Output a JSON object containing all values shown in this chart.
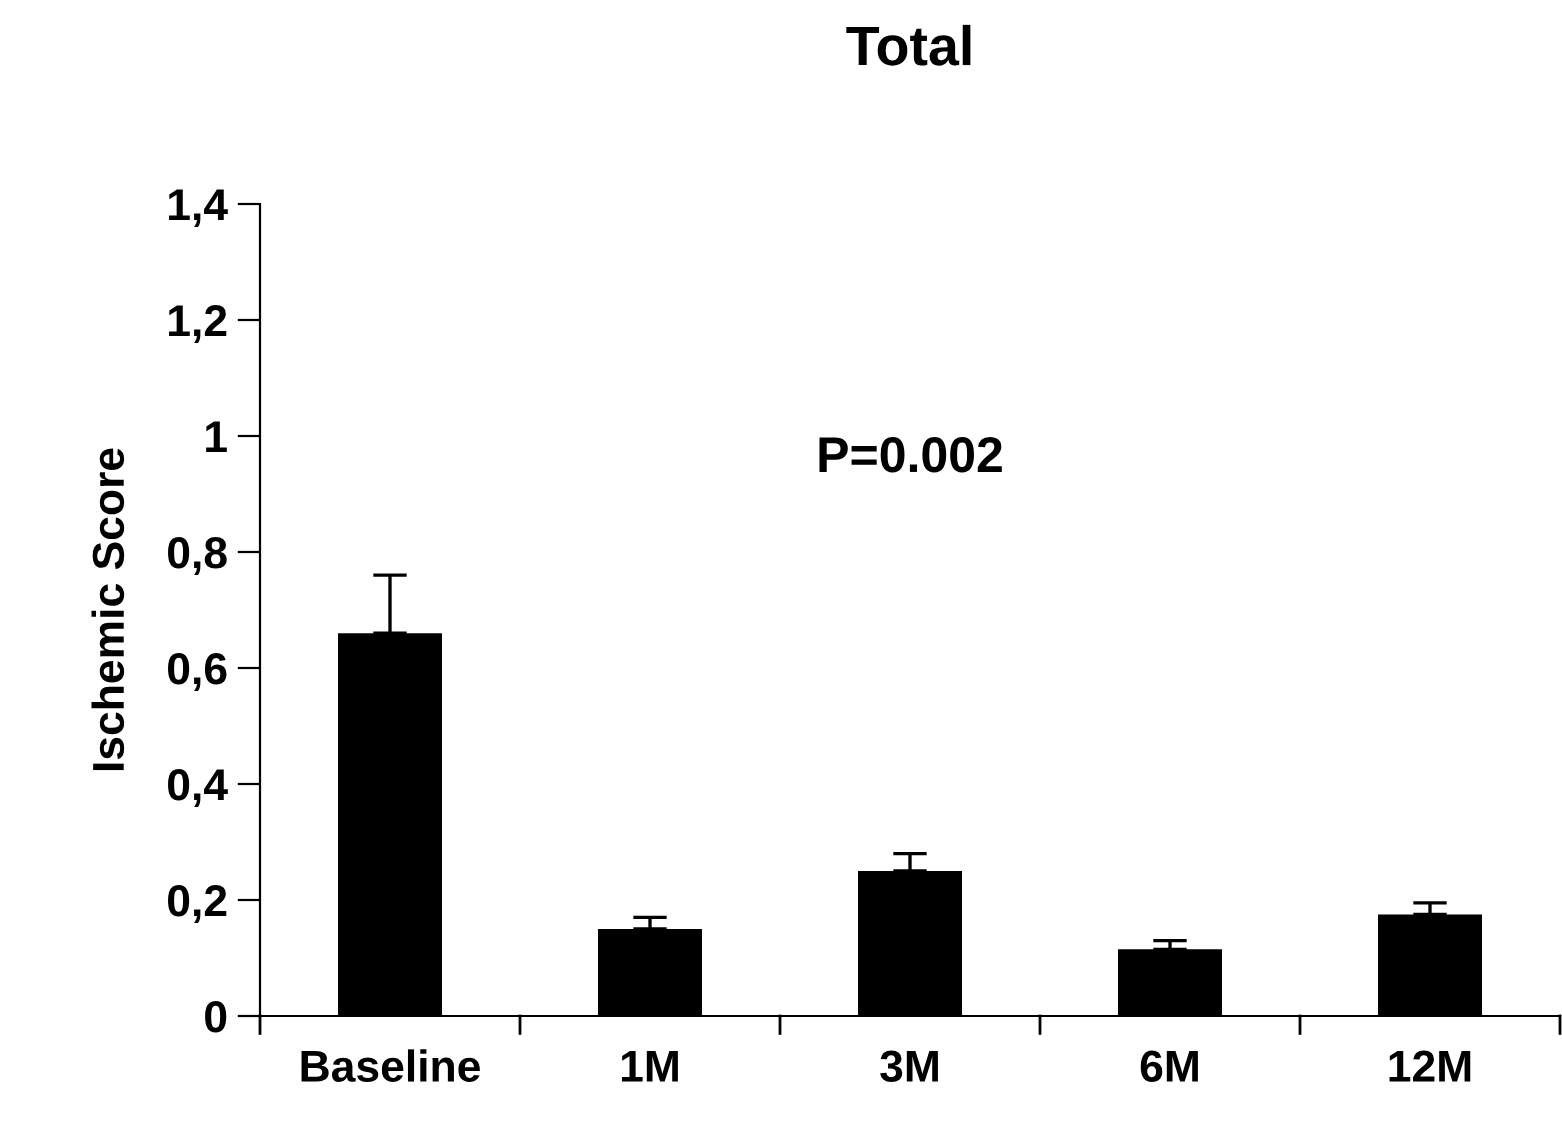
{
  "chart_data": {
    "type": "bar",
    "title": "Total",
    "ylabel": "Ischemic Score",
    "categories": [
      "Baseline",
      "1M",
      "3M",
      "6M",
      "12M"
    ],
    "values": [
      0.66,
      0.15,
      0.25,
      0.115,
      0.175
    ],
    "errors": [
      [
        0.66,
        0.76
      ],
      [
        0.15,
        0.17
      ],
      [
        0.25,
        0.28
      ],
      [
        0.115,
        0.13
      ],
      [
        0.175,
        0.195
      ]
    ],
    "color": "#000000",
    "ylim": [
      0,
      1.4
    ],
    "yticks": [
      0,
      {
        "value": 0.2,
        "label": "0,2"
      },
      {
        "value": 0.4,
        "label": "0,4"
      },
      {
        "value": 0.6,
        "label": "0,6"
      },
      {
        "value": 0.8,
        "label": "0,8"
      },
      1,
      {
        "value": 1.2,
        "label": "1,2"
      },
      {
        "value": 1.4,
        "label": "1,4"
      }
    ],
    "annotations": [
      "P=0.002"
    ],
    "grid": false,
    "legend": false
  }
}
